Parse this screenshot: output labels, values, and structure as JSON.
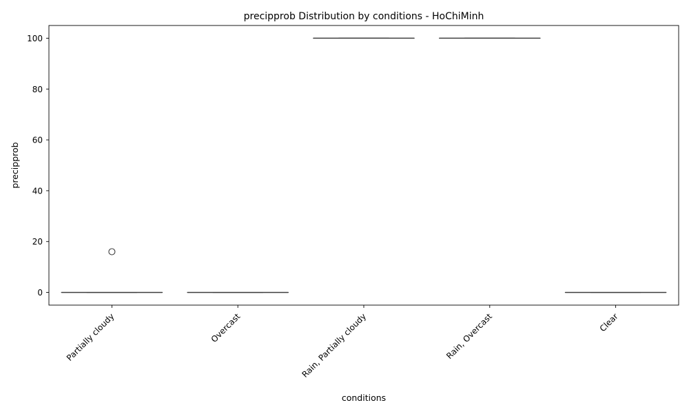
{
  "chart_data": {
    "type": "box",
    "title": "precipprob Distribution by conditions - HoChiMinh",
    "xlabel": "conditions",
    "ylabel": "precipprob",
    "ylim": [
      -5,
      105
    ],
    "yticks": [
      0,
      20,
      40,
      60,
      80,
      100
    ],
    "grid": false,
    "colors": {
      "box_line": "#3d3d3d",
      "axis": "#000000",
      "outlier_edge": "#3d3d3d"
    },
    "categories": [
      "Partially cloudy",
      "Overcast",
      "Rain, Partially cloudy",
      "Rain, Overcast",
      "Clear"
    ],
    "boxes": [
      {
        "category": "Partially cloudy",
        "min": 0,
        "q1": 0,
        "median": 0,
        "q3": 0,
        "max": 0,
        "outliers": [
          16
        ]
      },
      {
        "category": "Overcast",
        "min": 0,
        "q1": 0,
        "median": 0,
        "q3": 0,
        "max": 0,
        "outliers": []
      },
      {
        "category": "Rain, Partially cloudy",
        "min": 100,
        "q1": 100,
        "median": 100,
        "q3": 100,
        "max": 100,
        "outliers": []
      },
      {
        "category": "Rain, Overcast",
        "min": 100,
        "q1": 100,
        "median": 100,
        "q3": 100,
        "max": 100,
        "outliers": []
      },
      {
        "category": "Clear",
        "min": 0,
        "q1": 0,
        "median": 0,
        "q3": 0,
        "max": 0,
        "outliers": []
      }
    ]
  }
}
